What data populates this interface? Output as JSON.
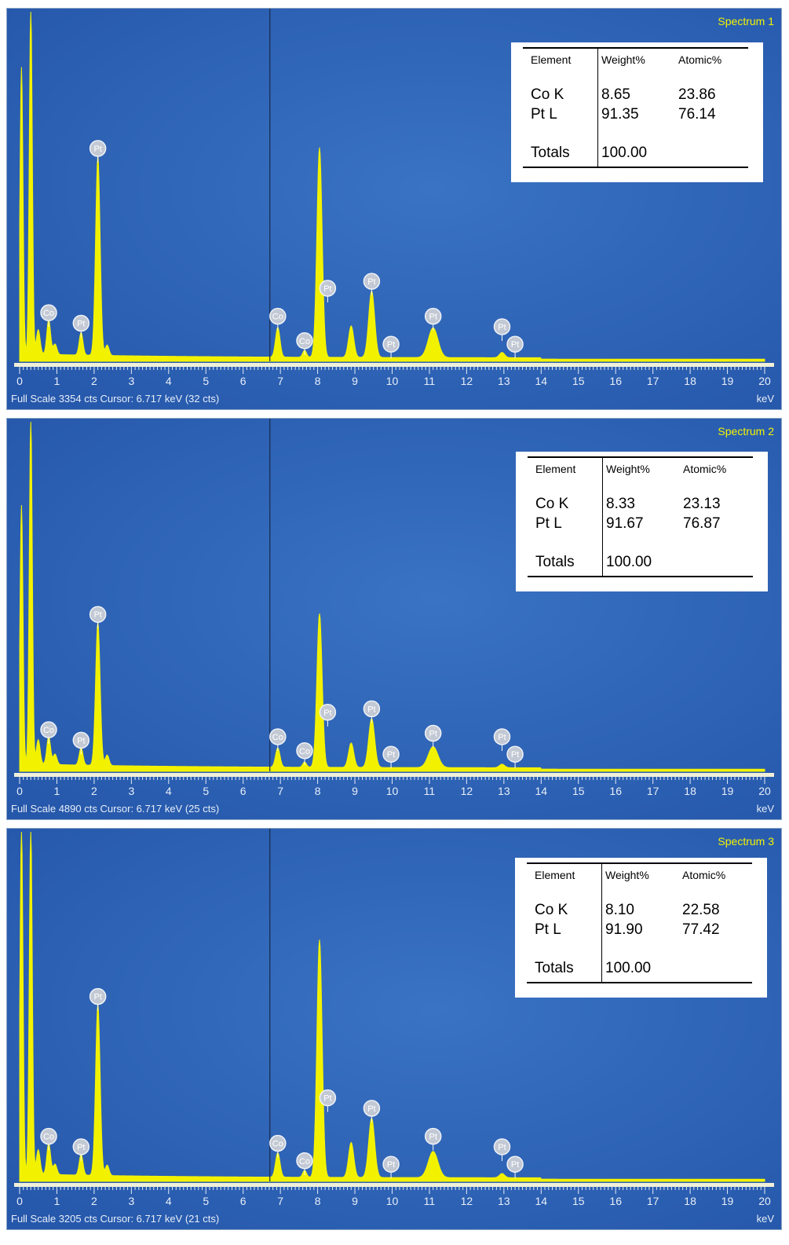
{
  "colors": {
    "background": "#2557aa",
    "background_light": "#3a73c4",
    "spectrum_fill": "#f2f200",
    "marker_fill": "#c3c9d4",
    "marker_text": "#ffffff",
    "axis_bar": "#f0f0d8",
    "panel_border": "#8da4c4"
  },
  "axis": {
    "label": "keV",
    "range": [
      0,
      20
    ],
    "ticks": [
      "0",
      "1",
      "2",
      "3",
      "4",
      "5",
      "6",
      "7",
      "8",
      "9",
      "10",
      "11",
      "12",
      "13",
      "14",
      "15",
      "16",
      "17",
      "18",
      "19",
      "20"
    ]
  },
  "cursor_kev": 6.717,
  "table_headers": {
    "element": "Element",
    "weight": "Weight%",
    "atomic": "Atomic%"
  },
  "totals_label": "Totals",
  "spectra": [
    {
      "title": "Spectrum 1",
      "footer": "Full Scale 3354 cts  Cursor: 6.717 keV (32 cts)",
      "rows": [
        {
          "element": "Co K",
          "weight": "8.65",
          "atomic": "23.86"
        },
        {
          "element": "Pt L",
          "weight": "91.35",
          "atomic": "76.14"
        }
      ],
      "total": "100.00"
    },
    {
      "title": "Spectrum 2",
      "footer": "Full Scale 4890 cts  Cursor: 6.717 keV (25 cts)",
      "rows": [
        {
          "element": "Co K",
          "weight": "8.33",
          "atomic": "23.13"
        },
        {
          "element": "Pt L",
          "weight": "91.67",
          "atomic": "76.87"
        }
      ],
      "total": "100.00"
    },
    {
      "title": "Spectrum 3",
      "footer": "Full Scale 3205 cts  Cursor: 6.717 keV (21 cts)",
      "rows": [
        {
          "element": "Co K",
          "weight": "8.10",
          "atomic": "22.58"
        },
        {
          "element": "Pt L",
          "weight": "91.90",
          "atomic": "77.42"
        }
      ],
      "total": "100.00"
    }
  ],
  "chart_data": [
    {
      "type": "area",
      "title": "Spectrum 1",
      "xlabel": "keV",
      "xlim": [
        0,
        20
      ],
      "ylim": [
        0,
        1
      ],
      "peaks": [
        {
          "kev": 0.05,
          "height": 0.82,
          "width": 0.04
        },
        {
          "kev": 0.3,
          "height": 1.0,
          "width": 0.04
        },
        {
          "kev": 0.5,
          "height": 0.07,
          "width": 0.05
        },
        {
          "kev": 0.78,
          "height": 0.1,
          "width": 0.05
        },
        {
          "kev": 0.95,
          "height": 0.03,
          "width": 0.05
        },
        {
          "kev": 1.65,
          "height": 0.065,
          "width": 0.05
        },
        {
          "kev": 2.1,
          "height": 0.57,
          "width": 0.06
        },
        {
          "kev": 2.35,
          "height": 0.03,
          "width": 0.05
        },
        {
          "kev": 6.93,
          "height": 0.085,
          "width": 0.06
        },
        {
          "kev": 7.65,
          "height": 0.02,
          "width": 0.05
        },
        {
          "kev": 8.05,
          "height": 0.6,
          "width": 0.07
        },
        {
          "kev": 8.9,
          "height": 0.09,
          "width": 0.07
        },
        {
          "kev": 9.45,
          "height": 0.19,
          "width": 0.08
        },
        {
          "kev": 11.1,
          "height": 0.085,
          "width": 0.13
        },
        {
          "kev": 12.95,
          "height": 0.015,
          "width": 0.07
        }
      ],
      "markers": [
        {
          "label": "Pt",
          "kev": 2.1,
          "height": 0.6
        },
        {
          "label": "Co",
          "kev": 0.78,
          "height": 0.13
        },
        {
          "label": "Pt",
          "kev": 1.65,
          "height": 0.1
        },
        {
          "label": "Co",
          "kev": 6.93,
          "height": 0.12
        },
        {
          "label": "Co",
          "kev": 7.65,
          "height": 0.05
        },
        {
          "label": "Pt",
          "kev": 8.27,
          "height": 0.2
        },
        {
          "label": "Pt",
          "kev": 9.45,
          "height": 0.22
        },
        {
          "label": "Pt",
          "kev": 9.97,
          "height": 0.04
        },
        {
          "label": "Pt",
          "kev": 11.1,
          "height": 0.12
        },
        {
          "label": "Pt",
          "kev": 12.95,
          "height": 0.09
        },
        {
          "label": "Pt",
          "kev": 13.3,
          "height": 0.04
        }
      ]
    },
    {
      "type": "area",
      "title": "Spectrum 2",
      "xlabel": "keV",
      "xlim": [
        0,
        20
      ],
      "ylim": [
        0,
        1
      ],
      "peaks": [
        {
          "kev": 0.05,
          "height": 0.74,
          "width": 0.04
        },
        {
          "kev": 0.3,
          "height": 1.0,
          "width": 0.04
        },
        {
          "kev": 0.5,
          "height": 0.07,
          "width": 0.05
        },
        {
          "kev": 0.78,
          "height": 0.08,
          "width": 0.05
        },
        {
          "kev": 0.95,
          "height": 0.03,
          "width": 0.05
        },
        {
          "kev": 1.65,
          "height": 0.05,
          "width": 0.05
        },
        {
          "kev": 2.1,
          "height": 0.41,
          "width": 0.06
        },
        {
          "kev": 2.35,
          "height": 0.03,
          "width": 0.05
        },
        {
          "kev": 6.93,
          "height": 0.055,
          "width": 0.06
        },
        {
          "kev": 7.65,
          "height": 0.015,
          "width": 0.05
        },
        {
          "kev": 8.05,
          "height": 0.44,
          "width": 0.07
        },
        {
          "kev": 8.9,
          "height": 0.07,
          "width": 0.07
        },
        {
          "kev": 9.45,
          "height": 0.14,
          "width": 0.08
        },
        {
          "kev": 11.1,
          "height": 0.06,
          "width": 0.13
        },
        {
          "kev": 12.95,
          "height": 0.01,
          "width": 0.07
        }
      ],
      "markers": [
        {
          "label": "Pt",
          "kev": 2.1,
          "height": 0.44
        },
        {
          "label": "Co",
          "kev": 0.78,
          "height": 0.11
        },
        {
          "label": "Pt",
          "kev": 1.65,
          "height": 0.08
        },
        {
          "label": "Co",
          "kev": 6.93,
          "height": 0.09
        },
        {
          "label": "Co",
          "kev": 7.65,
          "height": 0.05
        },
        {
          "label": "Pt",
          "kev": 8.27,
          "height": 0.16
        },
        {
          "label": "Pt",
          "kev": 9.45,
          "height": 0.17
        },
        {
          "label": "Pt",
          "kev": 9.97,
          "height": 0.04
        },
        {
          "label": "Pt",
          "kev": 11.1,
          "height": 0.1
        },
        {
          "label": "Pt",
          "kev": 12.95,
          "height": 0.09
        },
        {
          "label": "Pt",
          "kev": 13.3,
          "height": 0.04
        }
      ]
    },
    {
      "type": "area",
      "title": "Spectrum 3",
      "xlabel": "keV",
      "xlim": [
        0,
        20
      ],
      "ylim": [
        0,
        1
      ],
      "peaks": [
        {
          "kev": 0.05,
          "height": 1.0,
          "width": 0.04
        },
        {
          "kev": 0.3,
          "height": 1.0,
          "width": 0.04
        },
        {
          "kev": 0.5,
          "height": 0.07,
          "width": 0.05
        },
        {
          "kev": 0.78,
          "height": 0.09,
          "width": 0.05
        },
        {
          "kev": 0.95,
          "height": 0.03,
          "width": 0.05
        },
        {
          "kev": 1.65,
          "height": 0.06,
          "width": 0.05
        },
        {
          "kev": 2.1,
          "height": 0.49,
          "width": 0.06
        },
        {
          "kev": 2.35,
          "height": 0.03,
          "width": 0.05
        },
        {
          "kev": 6.93,
          "height": 0.07,
          "width": 0.06
        },
        {
          "kev": 7.65,
          "height": 0.02,
          "width": 0.05
        },
        {
          "kev": 8.05,
          "height": 0.68,
          "width": 0.07
        },
        {
          "kev": 8.9,
          "height": 0.1,
          "width": 0.07
        },
        {
          "kev": 9.45,
          "height": 0.17,
          "width": 0.08
        },
        {
          "kev": 11.1,
          "height": 0.075,
          "width": 0.13
        },
        {
          "kev": 12.95,
          "height": 0.012,
          "width": 0.07
        }
      ],
      "markers": [
        {
          "label": "Pt",
          "kev": 2.1,
          "height": 0.52
        },
        {
          "label": "Co",
          "kev": 0.78,
          "height": 0.12
        },
        {
          "label": "Pt",
          "kev": 1.65,
          "height": 0.09
        },
        {
          "label": "Co",
          "kev": 6.93,
          "height": 0.1
        },
        {
          "label": "Co",
          "kev": 7.65,
          "height": 0.05
        },
        {
          "label": "Pt",
          "kev": 8.27,
          "height": 0.23
        },
        {
          "label": "Pt",
          "kev": 9.45,
          "height": 0.2
        },
        {
          "label": "Pt",
          "kev": 9.97,
          "height": 0.04
        },
        {
          "label": "Pt",
          "kev": 11.1,
          "height": 0.12
        },
        {
          "label": "Pt",
          "kev": 12.95,
          "height": 0.09
        },
        {
          "label": "Pt",
          "kev": 13.3,
          "height": 0.04
        }
      ]
    }
  ]
}
